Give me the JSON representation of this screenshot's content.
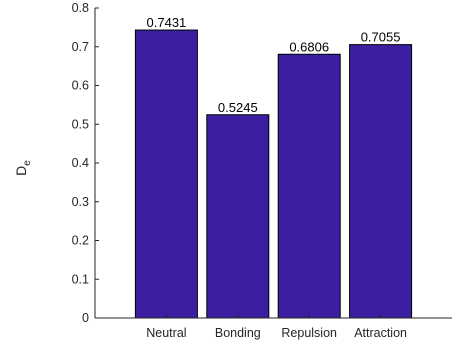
{
  "chart_data": {
    "type": "bar",
    "categories": [
      "Neutral",
      "Bonding",
      "Repulsion",
      "Attraction"
    ],
    "values": [
      0.7431,
      0.5245,
      0.6806,
      0.7055
    ],
    "data_labels": [
      "0.7431",
      "0.5245",
      "0.6806",
      "0.7055"
    ],
    "title": "",
    "xlabel": "",
    "ylabel": "D",
    "ylabel_subscript": "e",
    "ylim": [
      0,
      0.8
    ],
    "yticks": [
      0,
      0.1,
      0.2,
      0.3,
      0.4,
      0.5,
      0.6,
      0.7,
      0.8
    ],
    "ytick_labels": [
      "0",
      "0.1",
      "0.2",
      "0.3",
      "0.4",
      "0.5",
      "0.6",
      "0.7",
      "0.8"
    ],
    "grid": false,
    "bar_color": "#3c1fa0"
  }
}
